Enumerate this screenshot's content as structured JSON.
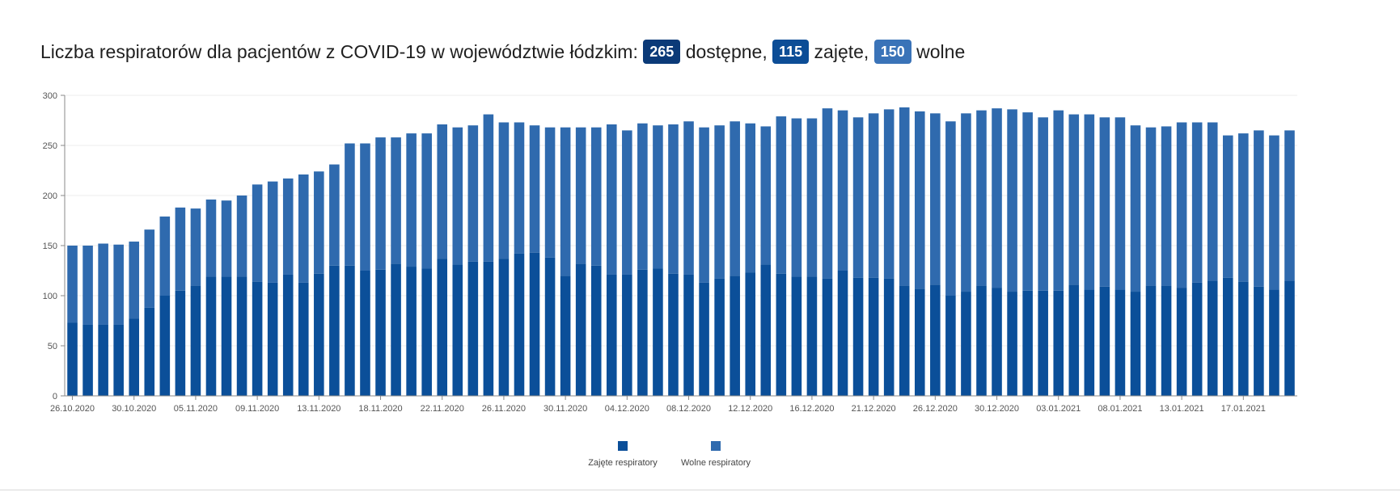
{
  "header": {
    "title_prefix": "Liczba respiratorów dla pacjentów z COVID-19 w województwie łódzkim:",
    "badges": [
      {
        "value": "265",
        "suffix": "dostępne,",
        "color": "#0b3a78"
      },
      {
        "value": "115",
        "suffix": "zajęte,",
        "color": "#0c4d96"
      },
      {
        "value": "150",
        "suffix": "wolne",
        "color": "#3a73b8"
      }
    ]
  },
  "chart_data": {
    "type": "bar",
    "stacked": true,
    "title": "",
    "xlabel": "",
    "ylabel": "",
    "ylim": [
      0,
      300
    ],
    "yticks": [
      0,
      50,
      100,
      150,
      200,
      250,
      300
    ],
    "x_tick_labels": [
      "26.10.2020",
      "30.10.2020",
      "05.11.2020",
      "09.11.2020",
      "13.11.2020",
      "18.11.2020",
      "22.11.2020",
      "26.11.2020",
      "30.11.2020",
      "04.12.2020",
      "08.12.2020",
      "12.12.2020",
      "16.12.2020",
      "21.12.2020",
      "26.12.2020",
      "30.12.2020",
      "03.01.2021",
      "08.01.2021",
      "13.01.2021",
      "17.01.2021"
    ],
    "x_tick_every": 4,
    "grid": true,
    "legend_position": "bottom-center",
    "series": [
      {
        "name": "Zajęte respiratory",
        "color": "#0b4f99",
        "values": [
          73,
          71,
          71,
          71,
          77,
          88,
          100,
          105,
          110,
          119,
          119,
          119,
          114,
          113,
          121,
          113,
          122,
          130,
          130,
          125,
          126,
          132,
          129,
          127,
          137,
          131,
          134,
          134,
          137,
          142,
          143,
          138,
          120,
          132,
          130,
          121,
          121,
          126,
          127,
          122,
          121,
          113,
          117,
          120,
          123,
          131,
          122,
          119,
          119,
          117,
          125,
          118,
          118,
          117,
          110,
          107,
          111,
          100,
          104,
          110,
          108,
          104,
          105,
          105,
          105,
          111,
          106,
          109,
          106,
          104,
          110,
          110,
          108,
          113,
          115,
          118,
          114,
          109,
          106,
          115
        ]
      },
      {
        "name": "Wolne respiratory",
        "color": "#2f6aae",
        "values": [
          77,
          79,
          81,
          80,
          77,
          78,
          79,
          83,
          77,
          77,
          76,
          81,
          97,
          101,
          96,
          108,
          102,
          101,
          122,
          127,
          132,
          126,
          133,
          135,
          134,
          137,
          136,
          147,
          136,
          131,
          127,
          130,
          148,
          136,
          138,
          150,
          144,
          146,
          143,
          149,
          153,
          155,
          153,
          154,
          149,
          138,
          157,
          158,
          158,
          170,
          160,
          160,
          164,
          169,
          178,
          177,
          171,
          174,
          178,
          175,
          179,
          182,
          178,
          173,
          180,
          170,
          175,
          169,
          172,
          166,
          158,
          159,
          165,
          160,
          158,
          142,
          148,
          156,
          154,
          150
        ]
      }
    ]
  },
  "legend": {
    "items": [
      {
        "label": "Zajęte respiratory",
        "color": "#0b4f99"
      },
      {
        "label": "Wolne respiratory",
        "color": "#2f6aae"
      }
    ]
  }
}
